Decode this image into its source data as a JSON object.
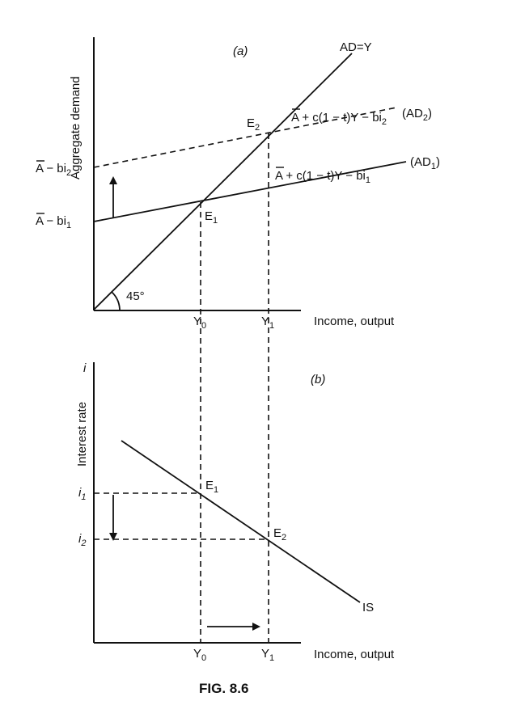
{
  "panel_a": {
    "tag": "(a)",
    "y_axis_label": "Aggregate demand",
    "x_axis_label": "Income, output",
    "angle_label": "45°",
    "intercept_upper": {
      "base": "A − bi",
      "sub": "2"
    },
    "intercept_lower": {
      "base": "A − bi",
      "sub": "1"
    },
    "line_45": "AD=Y",
    "ad2_eq": {
      "base": "A + c(1 − t)Y − bi",
      "sub": "2"
    },
    "ad2_name": {
      "base": "(AD",
      "sub": "2",
      "tail": ")"
    },
    "ad1_eq": {
      "base": "A + c(1 − t)Y − bi",
      "sub": "1"
    },
    "ad1_name": {
      "base": "(AD",
      "sub": "1",
      "tail": ")"
    },
    "point_e1": {
      "base": "E",
      "sub": "1"
    },
    "point_e2": {
      "base": "E",
      "sub": "2"
    },
    "tick_y0": {
      "base": "Y",
      "sub": "0"
    },
    "tick_y1": {
      "base": "Y",
      "sub": "1"
    }
  },
  "panel_b": {
    "tag": "(b)",
    "y_axis_symbol": "i",
    "y_axis_label": "Interest rate",
    "x_axis_label": "Income, output",
    "tick_i1": {
      "base": "i",
      "sub": "1"
    },
    "tick_i2": {
      "base": "i",
      "sub": "2"
    },
    "curve": "IS",
    "point_e1": {
      "base": "E",
      "sub": "1"
    },
    "point_e2": {
      "base": "E",
      "sub": "2"
    },
    "tick_y0": {
      "base": "Y",
      "sub": "0"
    },
    "tick_y1": {
      "base": "Y",
      "sub": "1"
    }
  },
  "caption": "FIG. 8.6"
}
